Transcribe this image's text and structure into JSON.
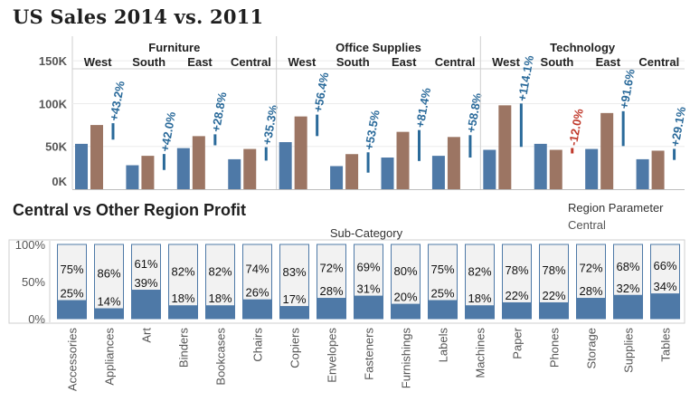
{
  "chart_data": [
    {
      "type": "bar",
      "title": "US Sales 2014 vs. 2011",
      "categories_levels": [
        "Furniture",
        "Office Supplies",
        "Technology"
      ],
      "regions": [
        "West",
        "South",
        "East",
        "Central"
      ],
      "series": [
        {
          "name": "2011",
          "color": "#4e79a7"
        },
        {
          "name": "2014",
          "color": "#9c7563"
        }
      ],
      "values_2011": [
        [
          53000,
          28000,
          48000,
          35000
        ],
        [
          55000,
          27000,
          37000,
          39000
        ],
        [
          46000,
          53000,
          47000,
          35000
        ]
      ],
      "values_2014": [
        [
          75000,
          39000,
          62000,
          47000
        ],
        [
          85000,
          41000,
          67000,
          61000
        ],
        [
          98000,
          46000,
          89000,
          45000
        ]
      ],
      "changes": [
        [
          "+43.2%",
          "+42.0%",
          "+28.8%",
          "+35.3%"
        ],
        [
          "+56.4%",
          "+53.5%",
          "+81.4%",
          "+58.8%"
        ],
        [
          "+114.1%",
          "-12.0%",
          "+91.6%",
          "+29.1%"
        ]
      ],
      "change_values": [
        [
          43.2,
          42.0,
          28.8,
          35.3
        ],
        [
          56.4,
          53.5,
          81.4,
          58.8
        ],
        [
          114.1,
          -12.0,
          91.6,
          29.1
        ]
      ],
      "yticks": [
        "150K",
        "100K",
        "50K",
        "0K"
      ],
      "ytick_values": [
        150000,
        100000,
        50000,
        0
      ],
      "ylim": [
        0,
        175000
      ],
      "positive_color": "#2a6a9a",
      "negative_color": "#c0392b"
    },
    {
      "type": "bar",
      "title": "Central vs Other Region Profit",
      "xlabel": "Sub-Category",
      "region_parameter_label": "Region Parameter",
      "region_parameter_value": "Central",
      "categories": [
        "Accessories",
        "Appliances",
        "Art",
        "Binders",
        "Bookcases",
        "Chairs",
        "Copiers",
        "Envelopes",
        "Fasteners",
        "Furnishings",
        "Labels",
        "Machines",
        "Paper",
        "Phones",
        "Storage",
        "Supplies",
        "Tables"
      ],
      "other_share": [
        75,
        86,
        61,
        82,
        82,
        74,
        83,
        72,
        69,
        80,
        75,
        82,
        78,
        78,
        72,
        68,
        66
      ],
      "central_share": [
        25,
        14,
        39,
        18,
        18,
        26,
        17,
        28,
        31,
        20,
        25,
        18,
        22,
        22,
        28,
        32,
        34
      ],
      "other_labels": [
        "75%",
        "86%",
        "61%",
        "82%",
        "82%",
        "74%",
        "83%",
        "72%",
        "69%",
        "80%",
        "75%",
        "82%",
        "78%",
        "78%",
        "72%",
        "68%",
        "66%"
      ],
      "central_labels": [
        "25%",
        "14%",
        "39%",
        "18%",
        "18%",
        "26%",
        "17%",
        "28%",
        "31%",
        "20%",
        "25%",
        "18%",
        "22%",
        "22%",
        "28%",
        "32%",
        "34%"
      ],
      "yticks": [
        "100%",
        "50%",
        "0%"
      ],
      "ytick_values": [
        100,
        50,
        0
      ],
      "ylim": [
        0,
        100
      ],
      "central_color": "#4e79a7",
      "other_color": "#f2f2f2"
    }
  ]
}
